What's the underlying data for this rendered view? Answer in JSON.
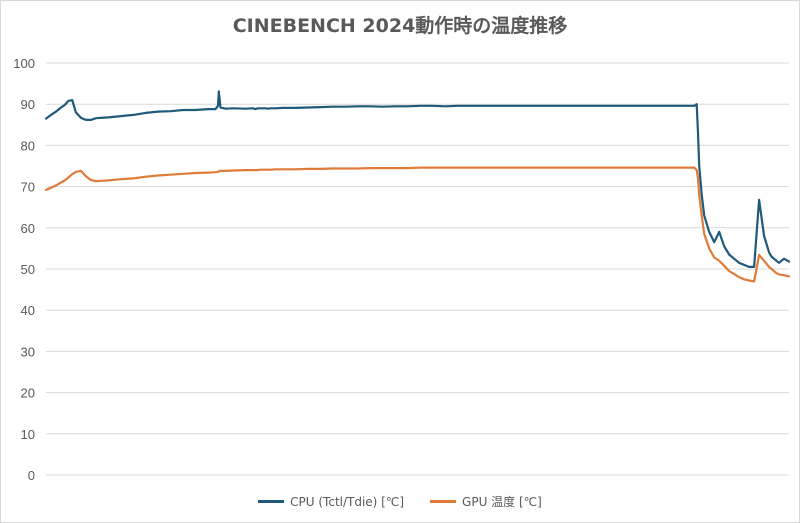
{
  "chart_data": {
    "type": "line",
    "title": "CINEBENCH 2024動作時の温度推移",
    "xlabel": "",
    "ylabel": "",
    "ylim": [
      0,
      100
    ],
    "yticks": [
      0,
      10,
      20,
      30,
      40,
      50,
      60,
      70,
      80,
      90,
      100
    ],
    "grid": true,
    "legend_position": "bottom",
    "x": [
      0,
      2,
      4,
      6,
      7.5,
      9,
      10.5,
      12,
      14,
      16,
      18,
      20,
      25,
      30,
      35,
      40,
      45,
      50,
      55,
      60,
      65,
      68,
      69,
      69.3,
      69.6,
      70,
      72,
      75,
      80,
      83,
      84,
      85,
      86,
      87,
      88,
      89,
      90,
      92,
      95,
      100,
      105,
      110,
      115,
      120,
      125,
      130,
      135,
      140,
      145,
      150,
      155,
      160,
      165,
      170,
      175,
      180,
      185,
      190,
      195,
      200,
      205,
      210,
      215,
      220,
      225,
      230,
      235,
      240,
      245,
      250,
      255,
      258,
      260,
      261,
      261.5,
      262,
      263,
      264,
      266,
      268,
      270,
      272,
      274,
      276,
      278,
      280,
      282,
      284,
      286,
      288,
      290,
      291,
      292,
      293,
      294,
      296,
      298
    ],
    "series": [
      {
        "name": "CPU (Tctl/Tdie) [℃]",
        "color": "#1f5a7a",
        "values": [
          86.5,
          87.4,
          88.2,
          89.2,
          89.8,
          90.8,
          91,
          88,
          86.7,
          86.2,
          86.2,
          86.6,
          86.8,
          87.1,
          87.4,
          87.9,
          88.2,
          88.3,
          88.6,
          88.6,
          88.8,
          88.8,
          89.6,
          93.1,
          91.5,
          89.2,
          88.9,
          89,
          88.9,
          89,
          88.8,
          89,
          89,
          89,
          89,
          88.9,
          89,
          89,
          89.1,
          89.1,
          89.2,
          89.3,
          89.4,
          89.4,
          89.5,
          89.5,
          89.4,
          89.5,
          89.5,
          89.6,
          89.6,
          89.5,
          89.6,
          89.6,
          89.6,
          89.6,
          89.6,
          89.6,
          89.6,
          89.6,
          89.6,
          89.6,
          89.6,
          89.6,
          89.6,
          89.6,
          89.6,
          89.6,
          89.6,
          89.6,
          89.6,
          89.6,
          89.6,
          90,
          83,
          75,
          68,
          63,
          59,
          56.5,
          59,
          55.5,
          53.5,
          52.5,
          51.5,
          51,
          50.5,
          50.5,
          66.8,
          58,
          54,
          53,
          52.5,
          52,
          51.5,
          52.5,
          51.8
        ]
      },
      {
        "name": "GPU 温度 [℃]",
        "color": "#e07b39",
        "values": [
          69.2,
          69.7,
          70.3,
          71,
          71.5,
          72.2,
          73,
          73.6,
          73.8,
          72.5,
          71.6,
          71.3,
          71.5,
          71.8,
          72,
          72.4,
          72.7,
          72.9,
          73.1,
          73.3,
          73.4,
          73.5,
          73.6,
          73.7,
          73.8,
          73.8,
          73.8,
          73.9,
          74,
          74,
          74,
          74,
          74.1,
          74.1,
          74.1,
          74.1,
          74.1,
          74.2,
          74.2,
          74.2,
          74.3,
          74.3,
          74.4,
          74.4,
          74.4,
          74.5,
          74.5,
          74.5,
          74.5,
          74.6,
          74.6,
          74.6,
          74.6,
          74.6,
          74.6,
          74.6,
          74.6,
          74.6,
          74.6,
          74.6,
          74.6,
          74.6,
          74.6,
          74.6,
          74.6,
          74.6,
          74.6,
          74.6,
          74.6,
          74.6,
          74.6,
          74.6,
          74.6,
          74,
          72,
          68,
          63,
          58.5,
          55,
          52.8,
          52,
          50.8,
          49.5,
          48.8,
          48,
          47.5,
          47.2,
          47,
          53.4,
          52,
          50.5,
          50,
          49.5,
          49,
          48.7,
          48.5,
          48.2
        ]
      }
    ]
  }
}
